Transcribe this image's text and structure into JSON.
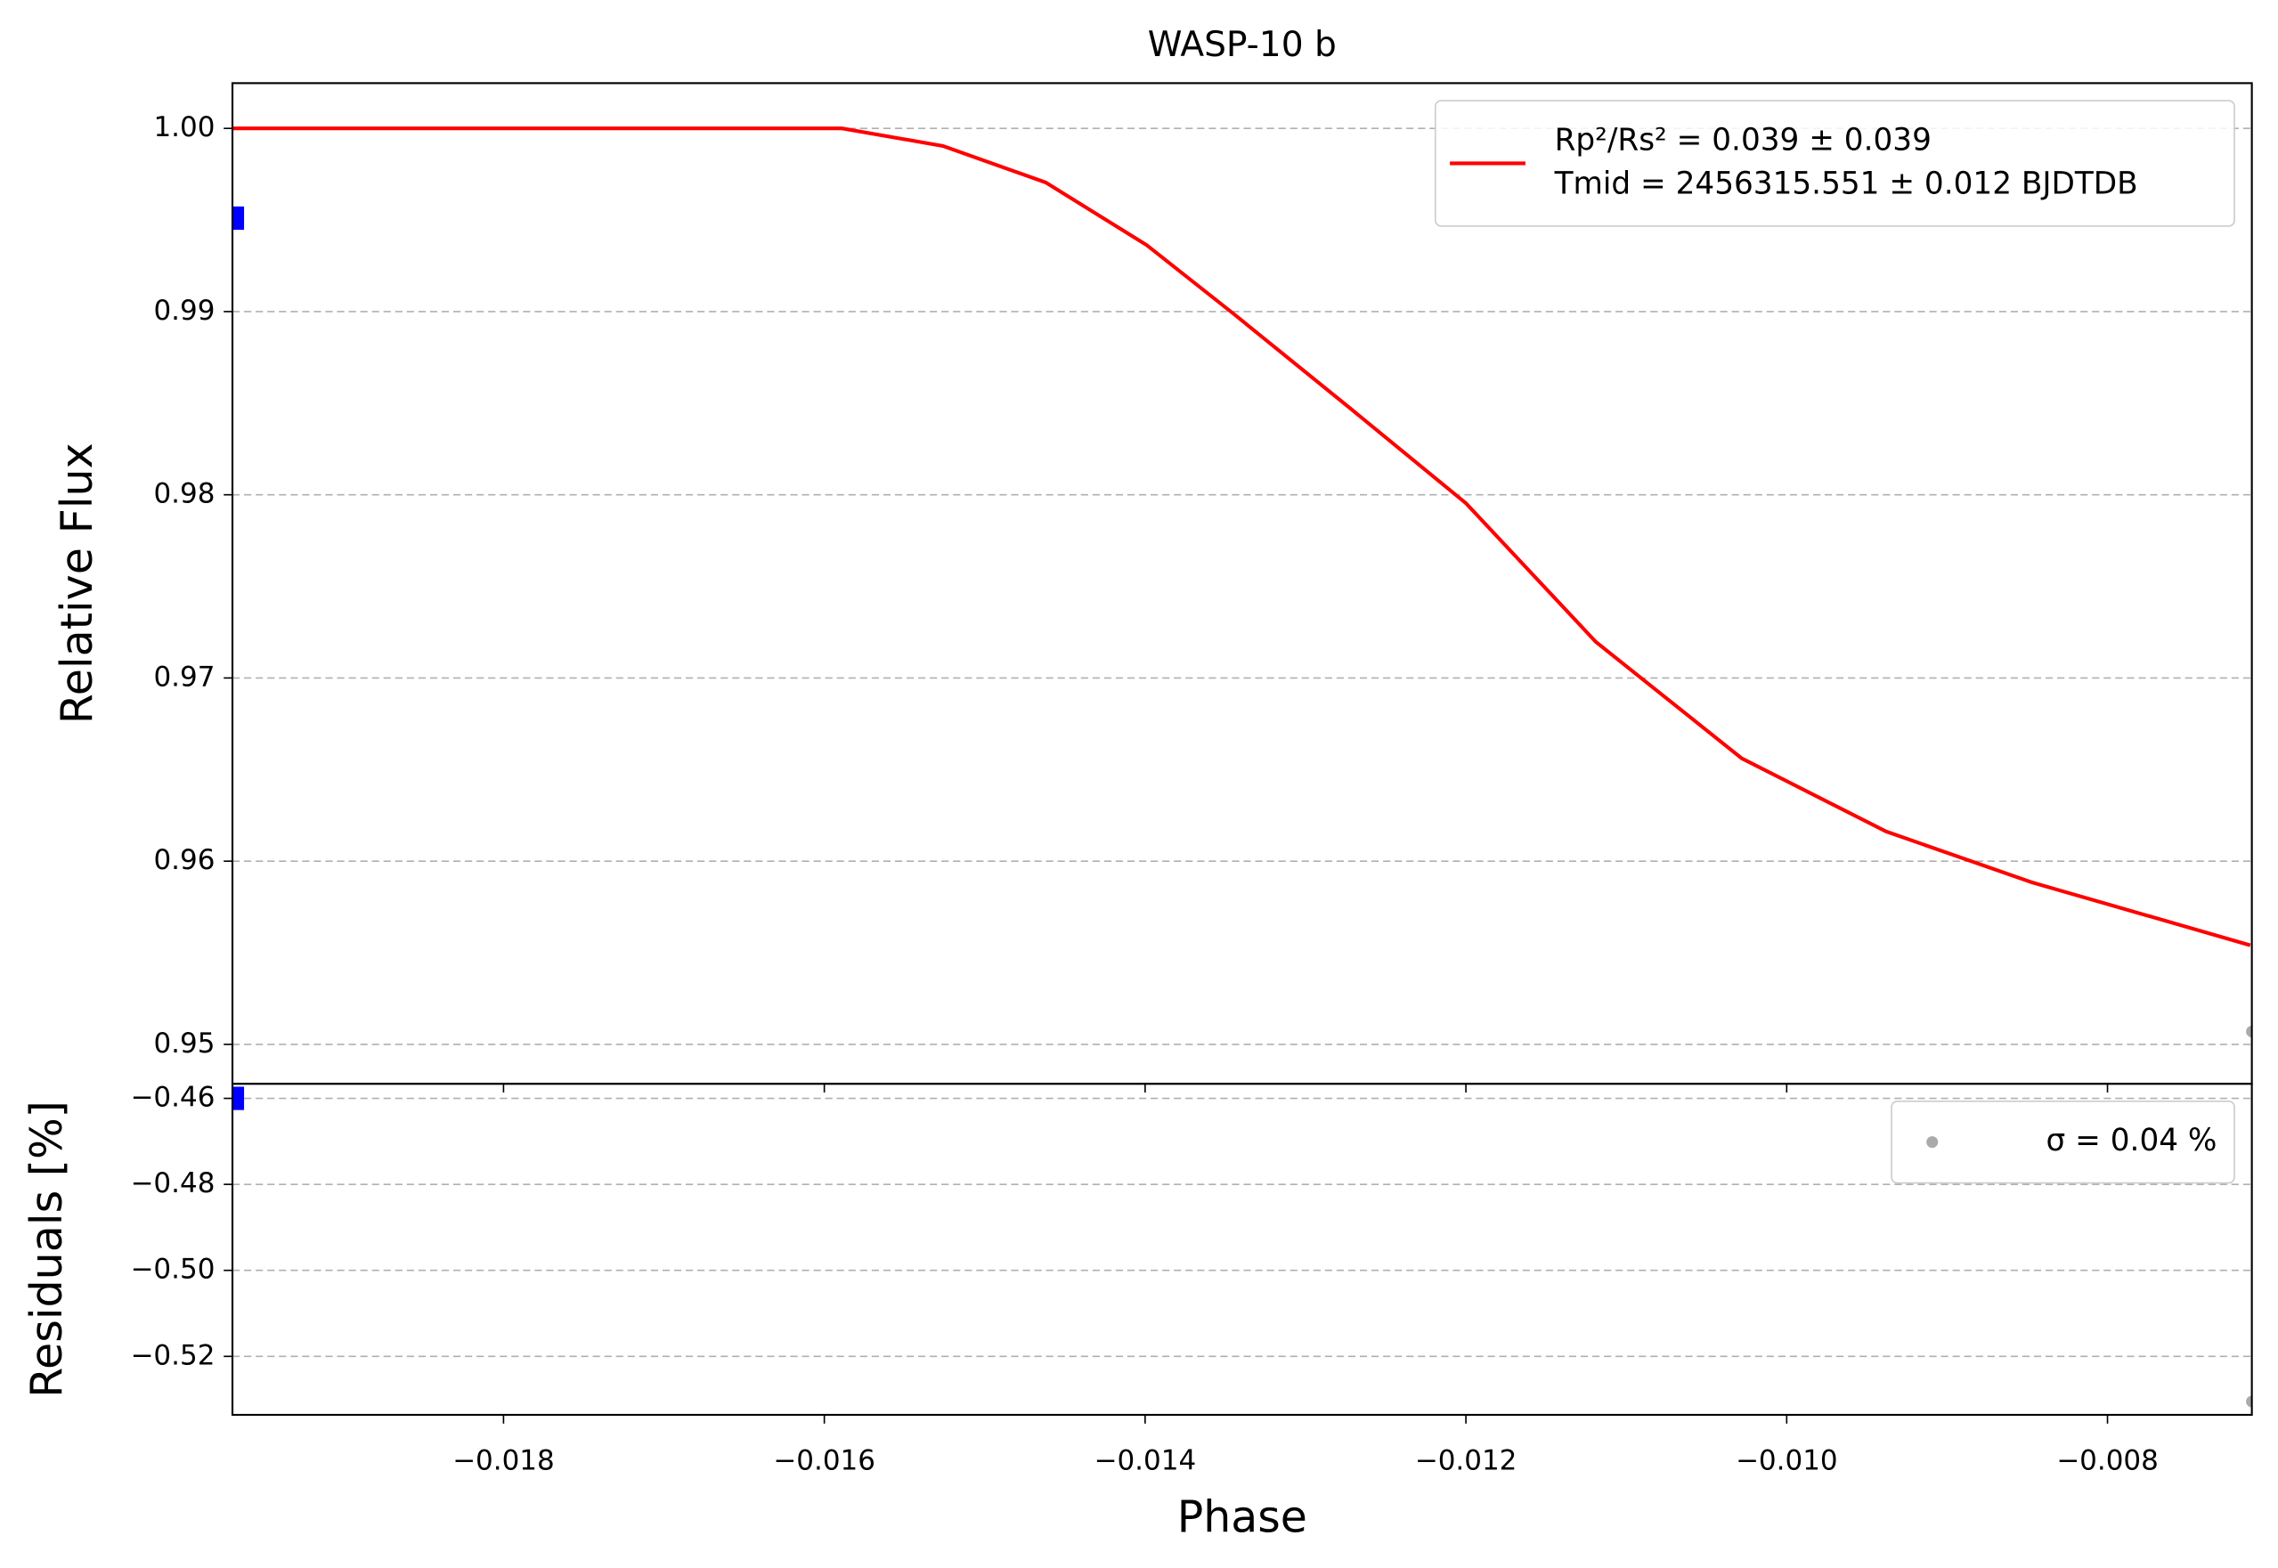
{
  "chart_data": [
    {
      "type": "line",
      "title": "WASP-10 b",
      "ylabel": "Relative Flux",
      "xlim": [
        -0.01969,
        -0.0071
      ],
      "ylim": [
        0.94785,
        1.00247
      ],
      "yticks": [
        {
          "value": 1.0,
          "label": "1.00"
        },
        0.99,
        0.98,
        0.97,
        0.96,
        0.95
      ],
      "grid": true,
      "legend": "upper right",
      "annotations": [
        "Tmid = 2456315.551 ± 0.012 BJDTDB"
      ],
      "series": [
        {
          "name": "Rp²/Rs² = 0.039 ± 0.039",
          "color": "#ff0000",
          "style": "line",
          "x": [
            -0.01969,
            -0.01589,
            -0.01526,
            -0.01462,
            -0.01399,
            -0.01345,
            -0.01272,
            -0.012,
            -0.01119,
            -0.01028,
            -0.00938,
            -0.00847,
            -0.00711
          ],
          "values": [
            1.0,
            1.0,
            0.99904,
            0.99705,
            0.99363,
            0.98989,
            0.98471,
            0.97954,
            0.97197,
            0.96561,
            0.96162,
            0.95884,
            0.95541
          ]
        },
        {
          "color": "#0000ff",
          "style": "errorbar",
          "x": [
            -0.01969
          ],
          "values": [
            0.9951
          ]
        },
        {
          "color": "#aaaaaa",
          "style": "point",
          "x": [
            -0.0071
          ],
          "values": [
            0.9507
          ]
        }
      ]
    },
    {
      "type": "scatter",
      "xlabel": "Phase",
      "ylabel": "Residuals [%]",
      "xlim": [
        -0.01969,
        -0.0071
      ],
      "ylim": [
        -0.5336,
        -0.4566
      ],
      "xticks": [
        {
          "value": -0.018,
          "label": "−0.018"
        },
        {
          "value": -0.016,
          "label": "−0.016"
        },
        {
          "value": -0.014,
          "label": "−0.014"
        },
        {
          "value": -0.012,
          "label": "−0.012"
        },
        {
          "value": -0.01,
          "label": "−0.010"
        },
        {
          "value": -0.008,
          "label": "−0.008"
        }
      ],
      "yticks": [
        {
          "value": -0.46,
          "label": "−0.46"
        },
        {
          "value": -0.48,
          "label": "−0.48"
        },
        {
          "value": -0.5,
          "label": "−0.50"
        },
        {
          "value": -0.52,
          "label": "−0.52"
        }
      ],
      "grid": true,
      "legend": "upper right",
      "series": [
        {
          "color": "#0000ff",
          "style": "errorbar",
          "x": [
            -0.01969
          ],
          "values": [
            -0.46
          ]
        },
        {
          "name": "σ = 0.04 %",
          "color": "#aaaaaa",
          "style": "point",
          "x": [
            -0.0071
          ],
          "values": [
            -0.5305
          ]
        }
      ]
    }
  ]
}
